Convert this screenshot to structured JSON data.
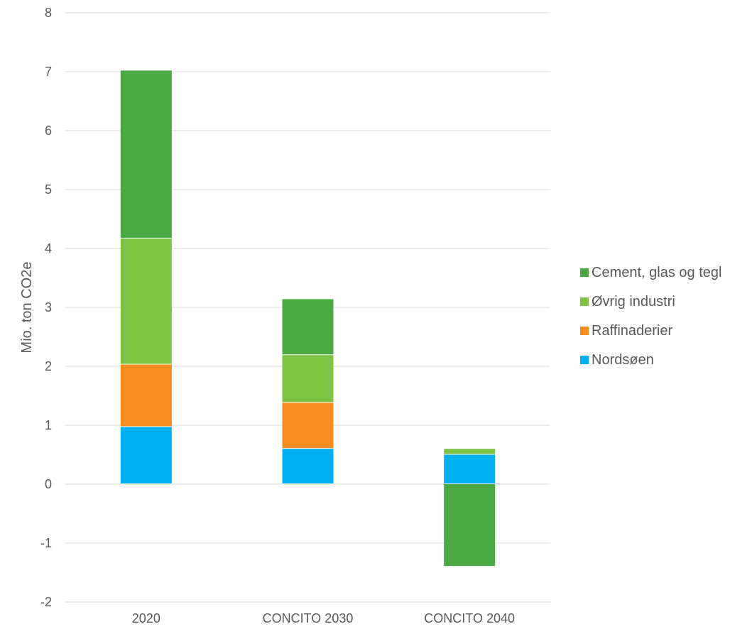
{
  "chart_data": {
    "type": "bar",
    "stacked": true,
    "ylabel": "Mio. ton CO2e",
    "xlabel": "",
    "ylim": [
      -2,
      8
    ],
    "yticks": [
      -2,
      -1,
      0,
      1,
      2,
      3,
      4,
      5,
      6,
      7,
      8
    ],
    "grid": true,
    "legend_position": "right",
    "categories": [
      "2020",
      "CONCITO 2030",
      "CONCITO 2040"
    ],
    "series": [
      {
        "name": "Nordsøen",
        "color": "#00b0f0",
        "values": [
          0.97,
          0.6,
          0.5
        ]
      },
      {
        "name": "Raffinaderier",
        "color": "#f68b1f",
        "values": [
          1.06,
          0.78,
          0
        ]
      },
      {
        "name": "Øvrig industri",
        "color": "#7fc241",
        "values": [
          2.14,
          0.81,
          0.1
        ]
      },
      {
        "name": "Cement, glas og tegl",
        "color": "#4aa845",
        "values": [
          2.85,
          0.95,
          -1.4
        ]
      }
    ],
    "legend_order": [
      "Cement, glas og tegl",
      "Øvrig industri",
      "Raffinaderier",
      "Nordsøen"
    ]
  }
}
